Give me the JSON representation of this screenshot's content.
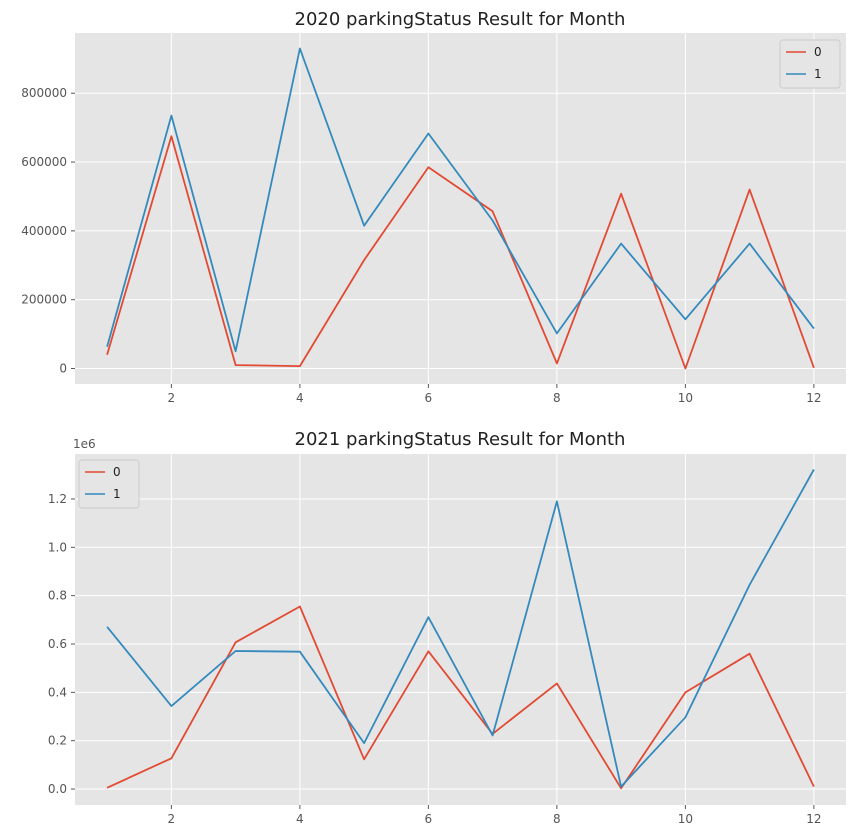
{
  "colors": {
    "series0": "#E24A33",
    "series1": "#348ABD",
    "plot_bg": "#E5E5E5",
    "grid": "#FFFFFF"
  },
  "chart_data": [
    {
      "type": "line",
      "title": "2020 parkingStatus Result for Month",
      "xlabel": "",
      "ylabel": "",
      "x": [
        1,
        2,
        3,
        4,
        5,
        6,
        7,
        8,
        9,
        10,
        11,
        12
      ],
      "xlim": [
        0.5,
        12.5
      ],
      "xticks": [
        2,
        4,
        6,
        8,
        10,
        12
      ],
      "ylim": [
        -45000,
        975000
      ],
      "yticks": [
        0,
        200000,
        400000,
        600000,
        800000
      ],
      "ytick_labels": [
        "0",
        "200000",
        "400000",
        "600000",
        "800000"
      ],
      "offset_label": "",
      "legend": "top-right",
      "grid": true,
      "series": [
        {
          "name": "0",
          "values": [
            40000,
            675000,
            10000,
            7000,
            315000,
            585000,
            457000,
            15000,
            508000,
            0,
            520000,
            2000
          ]
        },
        {
          "name": "1",
          "values": [
            63000,
            735000,
            50000,
            930000,
            415000,
            683000,
            430000,
            102000,
            363000,
            143000,
            363000,
            116000
          ]
        }
      ]
    },
    {
      "type": "line",
      "title": "2021 parkingStatus Result for Month",
      "xlabel": "",
      "ylabel": "",
      "x": [
        1,
        2,
        3,
        4,
        5,
        6,
        7,
        8,
        9,
        10,
        11,
        12
      ],
      "xlim": [
        0.5,
        12.5
      ],
      "xticks": [
        2,
        4,
        6,
        8,
        10,
        12
      ],
      "ylim": [
        -66000,
        1386000
      ],
      "yticks": [
        0,
        200000,
        400000,
        600000,
        800000,
        1000000,
        1200000
      ],
      "ytick_labels": [
        "0.0",
        "0.2",
        "0.4",
        "0.6",
        "0.8",
        "1.0",
        "1.2"
      ],
      "offset_label": "1e6",
      "legend": "top-left",
      "grid": true,
      "series": [
        {
          "name": "0",
          "values": [
            5000,
            127000,
            607000,
            755000,
            123000,
            570000,
            228000,
            437000,
            3000,
            400000,
            560000,
            10000
          ]
        },
        {
          "name": "1",
          "values": [
            671000,
            343000,
            571000,
            568000,
            190000,
            711000,
            222000,
            1190000,
            10000,
            297000,
            845000,
            1322000
          ]
        }
      ]
    }
  ]
}
